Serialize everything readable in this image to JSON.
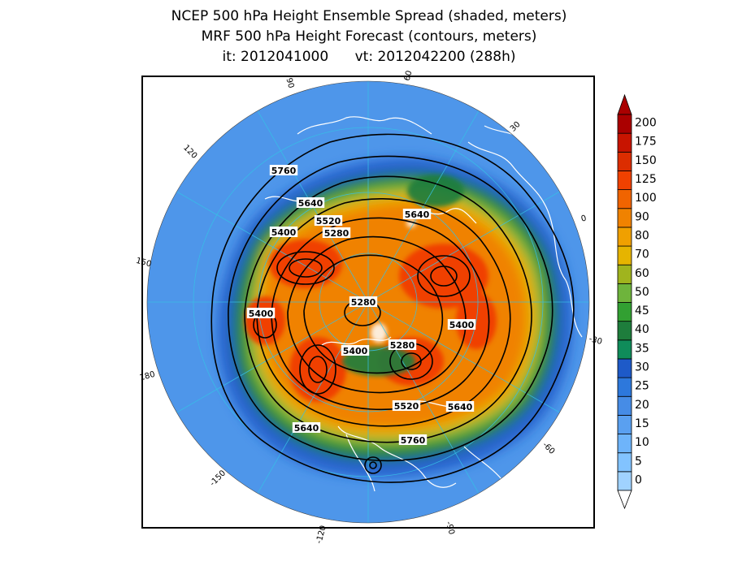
{
  "title": {
    "line1": "NCEP 500 hPa Height Ensemble Spread (shaded, meters)",
    "line2": "MRF 500 hPa Height Forecast (contours, meters)",
    "line3": "it: 2012041000      vt: 2012042200 (288h)"
  },
  "map": {
    "projection": "north-polar-stereographic",
    "colors": {
      "ocean_low_spread": "#4aa0e6",
      "frame": "#000000",
      "coastlines": "#ffffff",
      "contours": "#000000",
      "graticule": "#36c0e6"
    },
    "longitude_labels": [
      "60",
      "30",
      "0",
      "-30",
      "-60",
      "-90",
      "-120",
      "-150",
      "180",
      "150",
      "120",
      "90"
    ],
    "contour_labels": [
      "5760",
      "5640",
      "5520",
      "5280",
      "5400",
      "5640",
      "5400",
      "5280",
      "5400",
      "5400",
      "5280",
      "5520",
      "5640",
      "5640",
      "5760"
    ]
  },
  "colorbar": {
    "levels": [
      "0",
      "5",
      "10",
      "15",
      "20",
      "25",
      "30",
      "35",
      "40",
      "45",
      "50",
      "60",
      "70",
      "80",
      "90",
      "100",
      "125",
      "150",
      "175",
      "200"
    ],
    "colors": [
      "#a0d2ff",
      "#82c3ff",
      "#6eb4fa",
      "#5aa0f0",
      "#468ce6",
      "#2d78dc",
      "#1e5ac8",
      "#0f8c5a",
      "#1e7d3c",
      "#32a032",
      "#6eb43c",
      "#a0b41e",
      "#e6b400",
      "#f0a000",
      "#f08200",
      "#f06400",
      "#f04100",
      "#dc2d00",
      "#c81400",
      "#aa0000"
    ]
  }
}
